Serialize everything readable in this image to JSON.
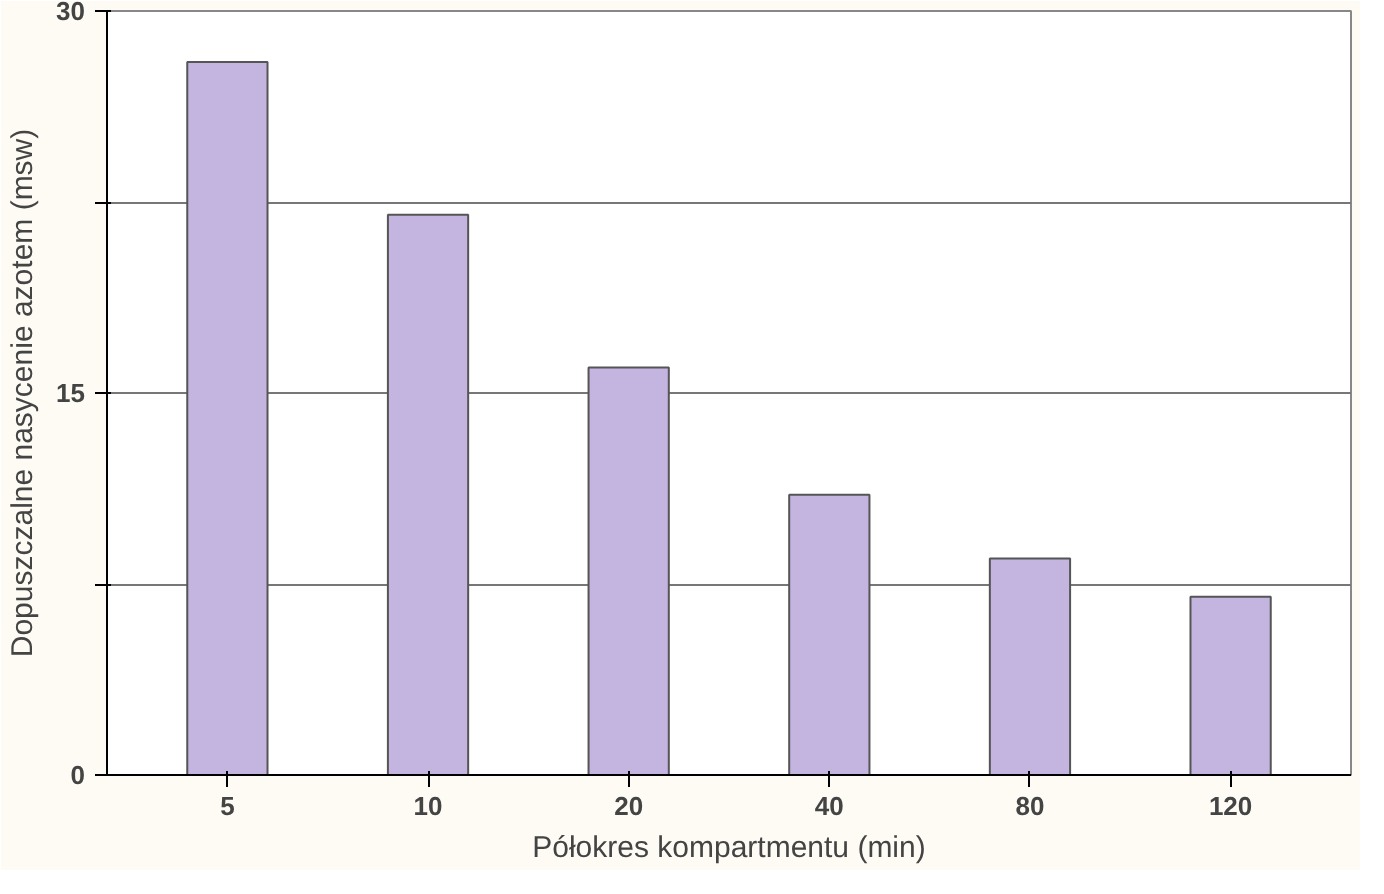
{
  "chart_data": {
    "type": "bar",
    "xlabel": "Półokres kompartmentu (min)",
    "ylabel": "Dopuszczalne nasycenie azotem (msw)",
    "categories": [
      "5",
      "10",
      "20",
      "40",
      "80",
      "120"
    ],
    "values": [
      28,
      22,
      16,
      11,
      8.5,
      7
    ],
    "color": "#c4b4e0",
    "ylim": [
      0,
      30
    ],
    "yticks": [
      0,
      {
        "value": 7.5,
        "label": null
      },
      15,
      {
        "value": 22.5,
        "label": null
      },
      30
    ],
    "grid": "y"
  }
}
